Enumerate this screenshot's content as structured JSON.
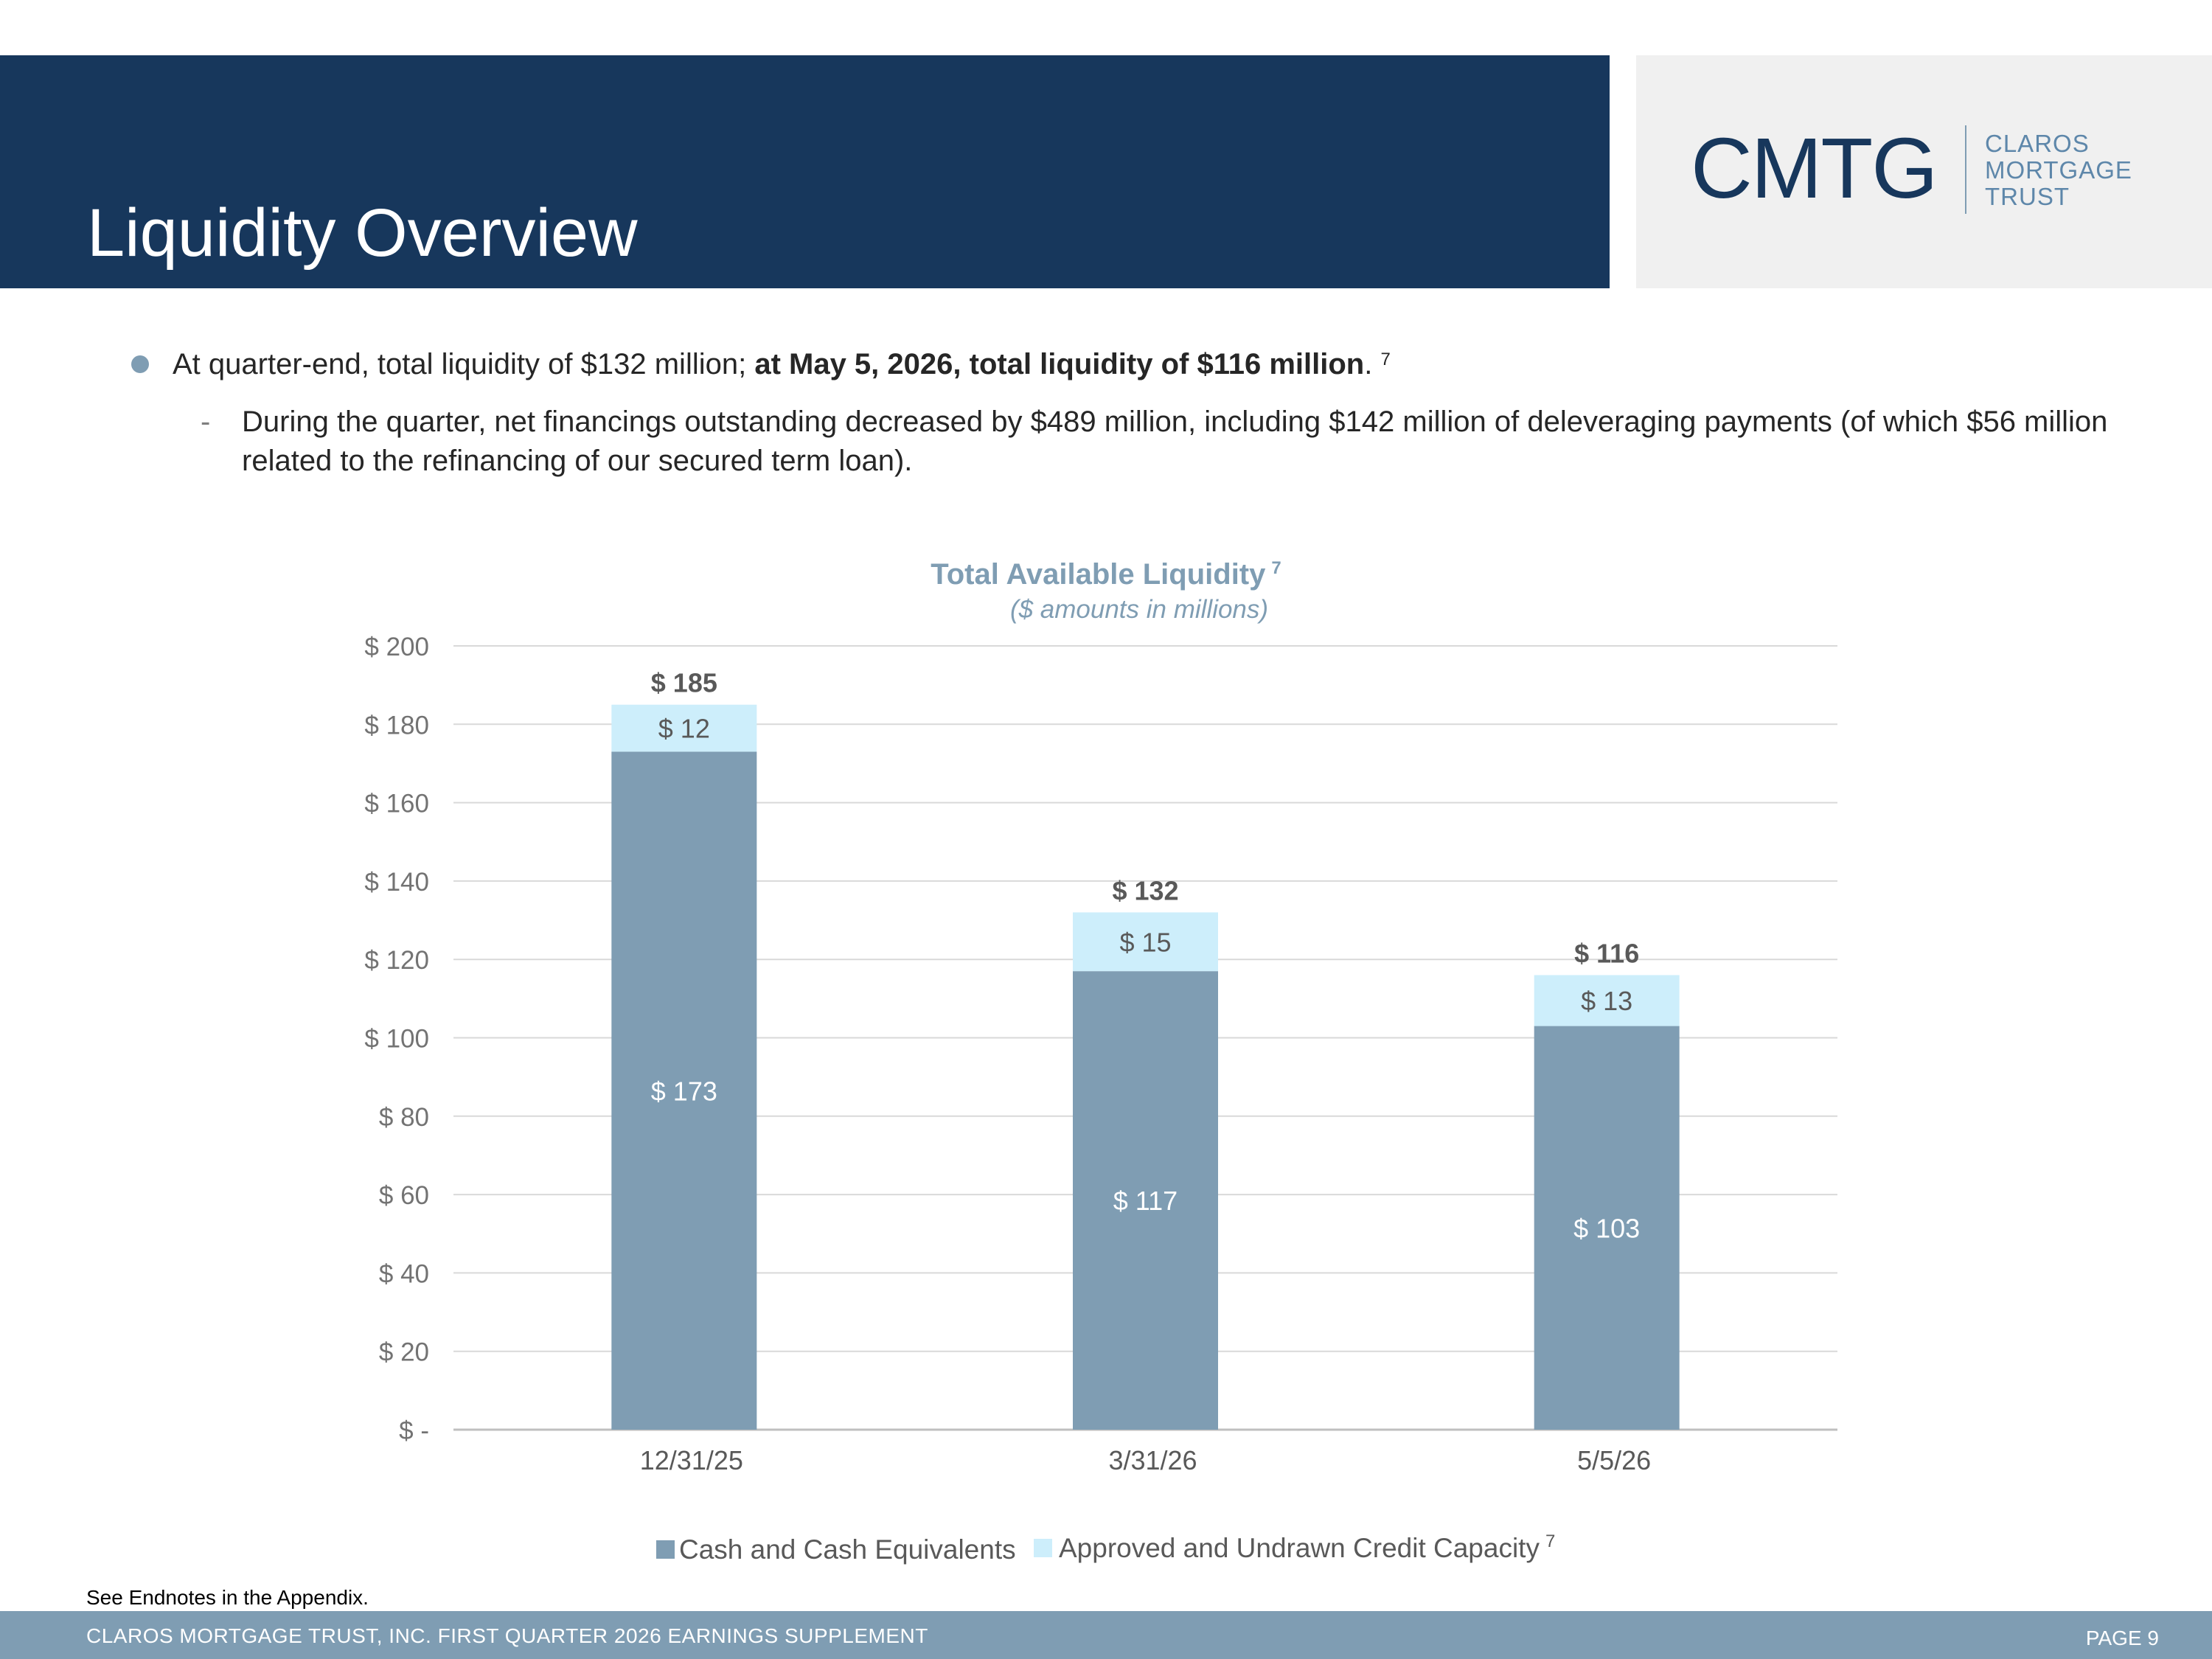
{
  "slide": {
    "title": "Liquidity Overview",
    "logo": {
      "mark": "CMTG",
      "lines": [
        "CLAROS",
        "MORTGAGE",
        "TRUST"
      ]
    },
    "bullet": {
      "text_plain": "At quarter-end, total liquidity of $132 million; ",
      "text_bold": "at May 5, 2026, total liquidity of $116 million",
      "text_end": ".",
      "footnote": "7"
    },
    "sub_bullet": {
      "dash": "-",
      "text": "During the quarter, net financings outstanding decreased by $489 million, including $142 million of deleveraging payments (of which $56 million related to the refinancing of our secured term loan)."
    },
    "endnote": "See Endnotes in the Appendix.",
    "footer": "CLAROS MORTGAGE TRUST, INC. FIRST QUARTER 2026 EARNINGS SUPPLEMENT",
    "page": "PAGE 9"
  },
  "chart_data": {
    "type": "bar",
    "stacked": true,
    "title": "Total Available Liquidity",
    "title_footnote": "7",
    "subtitle": "($ amounts in millions)",
    "categories": [
      "12/31/25",
      "3/31/26",
      "5/5/26"
    ],
    "series": [
      {
        "name": "Cash and Cash Equivalents",
        "values": [
          173,
          117,
          103
        ],
        "labels": [
          "$ 173",
          "$ 117",
          "$ 103"
        ],
        "color": "#7f9db3"
      },
      {
        "name": "Approved and Undrawn Credit Capacity",
        "name_footnote": "7",
        "values": [
          12,
          15,
          13
        ],
        "labels": [
          "$ 12",
          "$ 15",
          "$ 13"
        ],
        "color": "#cdeefb"
      }
    ],
    "totals": [
      185,
      132,
      116
    ],
    "total_labels": [
      "$ 185",
      "$ 132",
      "$ 116"
    ],
    "ylim": [
      0,
      200
    ],
    "yticks": [
      0,
      20,
      40,
      60,
      80,
      100,
      120,
      140,
      160,
      180,
      200
    ],
    "ytick_labels": [
      "$ -",
      "$ 20",
      "$ 40",
      "$ 60",
      "$ 80",
      "$ 100",
      "$ 120",
      "$ 140",
      "$ 160",
      "$ 180",
      "$ 200"
    ],
    "grid": true,
    "legend": "bottom"
  }
}
